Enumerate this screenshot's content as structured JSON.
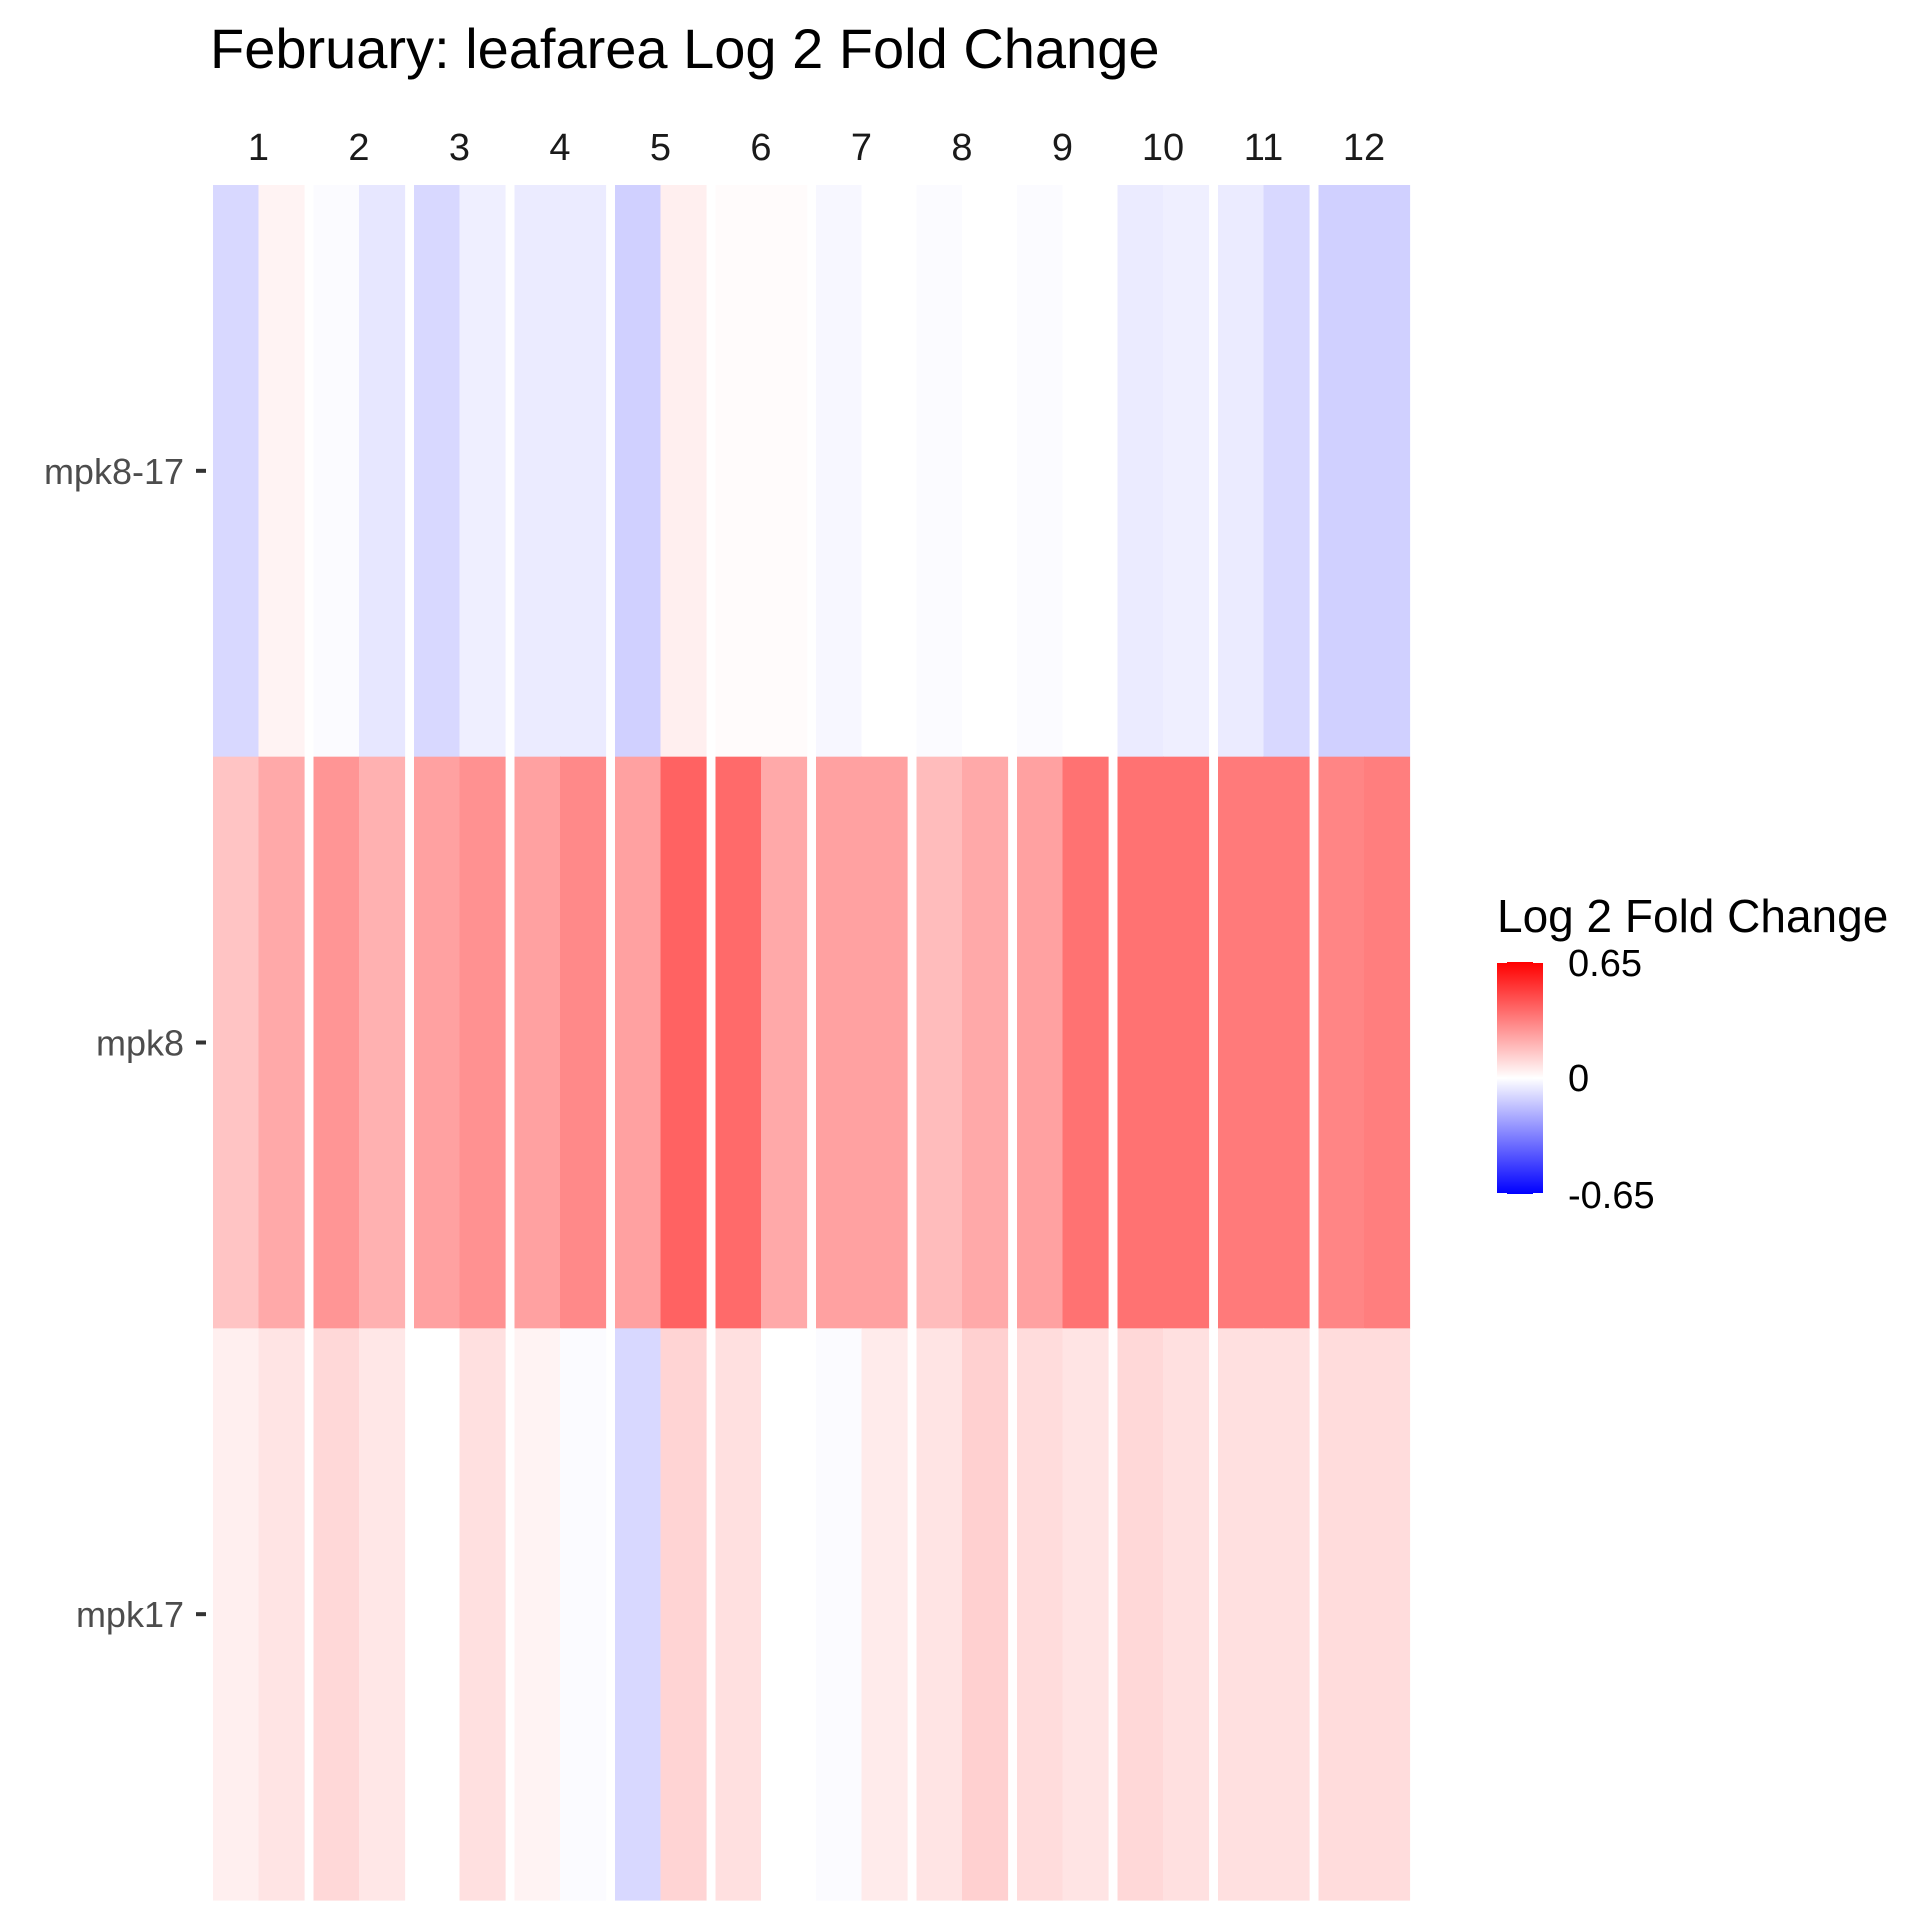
{
  "chart_data": {
    "type": "heatmap",
    "title": "February: leafarea Log 2 Fold Change",
    "columns": [
      "1",
      "2",
      "3",
      "4",
      "5",
      "6",
      "7",
      "8",
      "9",
      "10",
      "11",
      "12"
    ],
    "rows": [
      "mpk8-17",
      "mpk8",
      "mpk17"
    ],
    "subcolumns_per_column": 2,
    "values": [
      [
        -0.1,
        0.03,
        -0.01,
        -0.06,
        -0.1,
        -0.04,
        -0.05,
        -0.05,
        -0.12,
        0.04,
        0.01,
        0.01,
        -0.02,
        0.0,
        -0.01,
        0.0,
        -0.01,
        0.0,
        -0.05,
        -0.04,
        -0.05,
        -0.1,
        -0.12,
        -0.12
      ],
      [
        0.15,
        0.22,
        0.27,
        0.2,
        0.24,
        0.28,
        0.24,
        0.3,
        0.24,
        0.4,
        0.38,
        0.22,
        0.24,
        0.24,
        0.17,
        0.22,
        0.24,
        0.36,
        0.36,
        0.36,
        0.34,
        0.34,
        0.31,
        0.33
      ],
      [
        0.04,
        0.07,
        0.1,
        0.06,
        0.0,
        0.08,
        0.03,
        -0.01,
        -0.1,
        0.11,
        0.08,
        0.0,
        -0.01,
        0.05,
        0.07,
        0.12,
        0.09,
        0.07,
        0.1,
        0.08,
        0.08,
        0.08,
        0.09,
        0.09
      ]
    ],
    "color_scale": {
      "low": "#0000ff",
      "mid": "#ffffff",
      "high": "#ff0000",
      "limits": [
        -0.65,
        0.65
      ]
    },
    "legend": {
      "title": "Log 2 Fold Change",
      "ticks": [
        "0.65",
        "0",
        "-0.65"
      ],
      "placement": "right"
    },
    "grid": false
  }
}
